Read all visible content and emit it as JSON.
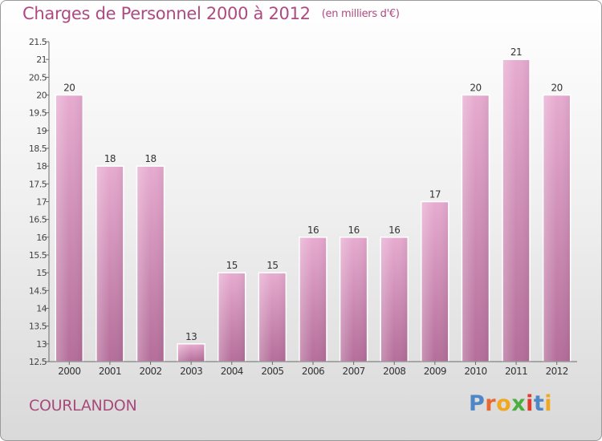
{
  "header": {
    "title": "Charges de Personnel 2000 à 2012",
    "unit": "(en milliers d'€)"
  },
  "footer": {
    "commune": "COURLANDON",
    "logo": "Proxiti"
  },
  "colors": {
    "bar_light": "#e7abd0",
    "bar_dark": "#b46e9a",
    "title": "#ad4a80",
    "logo_letters": [
      "#4f86c6",
      "#e8682f",
      "#f0a821",
      "#4cae3e",
      "#e23b2c",
      "#4f86c6",
      "#f0a821"
    ]
  },
  "chart_data": {
    "type": "bar",
    "title": "Charges de Personnel 2000 à 2012",
    "subtitle": "(en milliers d'€)",
    "xlabel": "",
    "ylabel": "",
    "categories": [
      "2000",
      "2001",
      "2002",
      "2003",
      "2004",
      "2005",
      "2006",
      "2007",
      "2008",
      "2009",
      "2010",
      "2011",
      "2012"
    ],
    "values": [
      20,
      18,
      18,
      13,
      15,
      15,
      16,
      16,
      16,
      17,
      20,
      21,
      20
    ],
    "ylim": [
      12.5,
      21.5
    ],
    "yticks": [
      "12.5",
      "13",
      "13.5",
      "14",
      "14.5",
      "15",
      "15.5",
      "16",
      "16.5",
      "17",
      "17.5",
      "18",
      "18.5",
      "19",
      "19.5",
      "20",
      "20.5",
      "21",
      "21.5"
    ],
    "grid": false,
    "legend": "none"
  }
}
